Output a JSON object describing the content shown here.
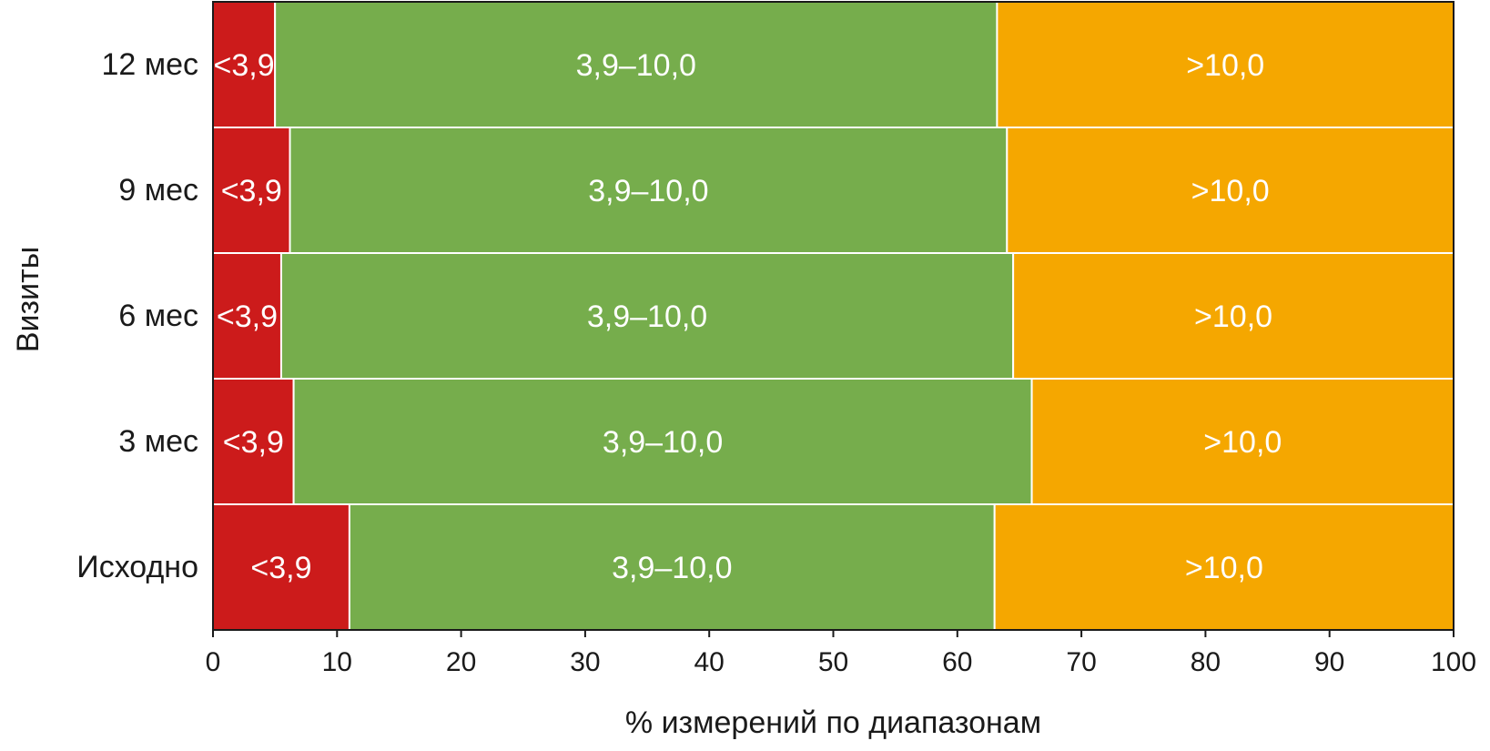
{
  "chart_data": {
    "type": "bar",
    "orientation": "horizontal",
    "stacked": true,
    "categories": [
      "Исходно",
      "3 мес",
      "6 мес",
      "9 мес",
      "12 мес"
    ],
    "series": [
      {
        "label": "<3,9",
        "color": "#cc1b1b",
        "values": [
          11.0,
          6.5,
          5.5,
          6.2,
          5.0
        ]
      },
      {
        "label": "3,9–10,0",
        "color": "#76ad4c",
        "values": [
          52.0,
          59.5,
          59.0,
          57.8,
          58.2
        ]
      },
      {
        "label": ">10,0",
        "color": "#f5a700",
        "values": [
          37.0,
          34.0,
          35.5,
          36.0,
          36.8
        ]
      }
    ],
    "xlabel": "% измерений по диапазонам",
    "ylabel": "Визиты",
    "xlim": [
      0,
      100
    ],
    "xticks": [
      "0",
      "10",
      "20",
      "30",
      "40",
      "50",
      "60",
      "70",
      "80",
      "90",
      "100"
    ],
    "grid": false,
    "legend": "none"
  }
}
